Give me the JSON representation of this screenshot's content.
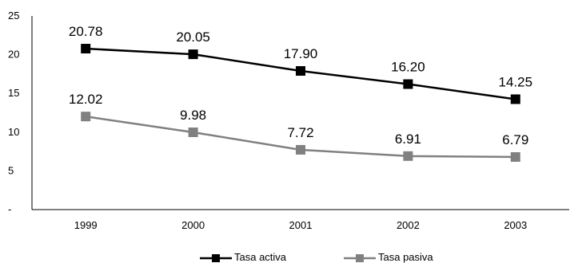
{
  "chart_data": {
    "type": "line",
    "categories": [
      "1999",
      "2000",
      "2001",
      "2002",
      "2003"
    ],
    "series": [
      {
        "name": "Tasa activa",
        "values": [
          20.78,
          20.05,
          17.9,
          16.2,
          14.25
        ],
        "labels": [
          "20.78",
          "20.05",
          "17.90",
          "16.20",
          "14.25"
        ],
        "color": "#000000"
      },
      {
        "name": "Tasa pasiva",
        "values": [
          12.02,
          9.98,
          7.72,
          6.91,
          6.79
        ],
        "labels": [
          "12.02",
          "9.98",
          "7.72",
          "6.91",
          "6.79"
        ],
        "color": "#808080"
      }
    ],
    "y_ticks": [
      "-",
      "5",
      "10",
      "15",
      "20",
      "25"
    ],
    "ylim": [
      0,
      25
    ],
    "grid": false,
    "legend_position": "bottom"
  }
}
